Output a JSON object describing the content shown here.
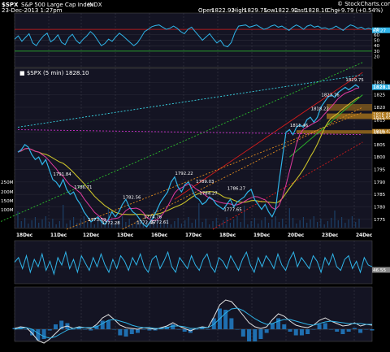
{
  "header": {
    "symbol": "$SPX",
    "name": "S&P 500 Large Cap Index",
    "exchange": "INDX",
    "datetime": "23-Dec-2013 1:27pm",
    "open_label": "Open",
    "open": "1822.92",
    "high_label": "High",
    "high": "1829.75",
    "low_label": "Low",
    "low": "1822.92",
    "last_label": "Last",
    "last": "1828.10",
    "chg_label": "Chg",
    "chg": "+9.79 (+0.54%)",
    "credit": "© StockCharts.com",
    "legend": "■ $SPX (5 min) 1828.10"
  },
  "colors": {
    "price": "#2fb4e8",
    "sma_fast": "#e03aa0",
    "sma_slow": "#c8c02a",
    "trend_red": "#d81b1b",
    "trend_orange": "#e08a1e",
    "trend_green": "#2cbf2c",
    "trend_cyan": "#3ad8e8",
    "trend_magenta": "#c62fc6",
    "zone": "#b0791a",
    "grid": "#3a3a46",
    "last_price_box": "#2fb4e8"
  },
  "chart_data": [
    {
      "type": "line",
      "title": "RSI",
      "ylim": [
        0,
        100
      ],
      "y_ticks": [
        "70",
        "60",
        "50",
        "40",
        "30",
        "20"
      ],
      "last_value": "68.27",
      "series": [
        {
          "values": [
            52,
            58,
            48,
            55,
            62,
            45,
            40,
            50,
            58,
            63,
            47,
            52,
            60,
            46,
            42,
            55,
            61,
            50,
            44,
            52,
            58,
            66,
            60,
            50,
            40,
            44,
            52,
            48,
            56,
            63,
            58,
            52,
            46,
            40,
            45,
            55,
            66,
            70,
            75,
            77,
            78,
            74,
            70,
            72,
            76,
            72,
            66,
            62,
            70,
            74,
            66,
            58,
            50,
            56,
            62,
            53,
            45,
            50,
            40,
            38,
            46,
            64,
            76,
            77,
            78,
            74,
            76,
            78,
            74,
            70,
            72,
            76,
            78,
            74,
            76,
            72,
            68,
            74,
            78,
            75,
            70,
            76,
            78,
            74,
            76,
            72,
            73,
            70,
            72,
            76,
            72,
            68,
            74,
            78,
            76,
            72,
            74,
            70,
            72,
            70
          ]
        }
      ],
      "reference_lines": [
        70,
        30
      ]
    },
    {
      "type": "line",
      "title": "$SPX (5 min)",
      "x_tick_labels": [
        "18Dec",
        "11Dec",
        "12Dec",
        "13Dec",
        "16Dec",
        "17Dec",
        "18Dec",
        "19Dec",
        "20Dec",
        "23Dec",
        "24Dec"
      ],
      "y_ticks": [
        "1830",
        "1825",
        "1820",
        "1815",
        "1810",
        "1805",
        "1800",
        "1795",
        "1790",
        "1785",
        "1780",
        "1775"
      ],
      "volume_ticks": [
        "250M",
        "200M",
        "150M",
        "100M"
      ],
      "last_price": "1828.10",
      "ylim": [
        1772,
        1835
      ],
      "zone_labels": [
        "1816.89",
        "1815.65",
        "1810.42"
      ],
      "price": [
        1802,
        1803,
        1805,
        1804,
        1801,
        1799,
        1800,
        1797,
        1799,
        1795,
        1791,
        1790,
        1788,
        1791,
        1787,
        1785,
        1786,
        1783,
        1781,
        1778,
        1776,
        1774,
        1775,
        1776,
        1774,
        1773,
        1775,
        1778,
        1776,
        1778,
        1781,
        1783,
        1780,
        1778,
        1777,
        1775,
        1773,
        1772,
        1774,
        1776,
        1779,
        1782,
        1784,
        1786,
        1790,
        1792,
        1788,
        1786,
        1789,
        1790,
        1787,
        1784,
        1783,
        1781,
        1782,
        1784,
        1783,
        1781,
        1780,
        1779,
        1781,
        1783,
        1780,
        1782,
        1783,
        1784,
        1786,
        1787,
        1783,
        1781,
        1779,
        1781,
        1778,
        1776,
        1779,
        1790,
        1800,
        1810,
        1811,
        1809,
        1812,
        1813,
        1812,
        1815,
        1816,
        1814,
        1816,
        1820,
        1822,
        1824,
        1825,
        1824,
        1826,
        1827,
        1828,
        1827,
        1828,
        1829,
        1828
      ],
      "annotations": [
        {
          "label": "1791.84",
          "x": 12,
          "y": 1791.84
        },
        {
          "label": "1786.71",
          "x": 18,
          "y": 1786.71
        },
        {
          "label": "1782.56",
          "x": 32,
          "y": 1782.56
        },
        {
          "label": "1773.59",
          "x": 22,
          "y": 1773.59
        },
        {
          "label": "1772.28",
          "x": 26,
          "y": 1772.28
        },
        {
          "label": "1772.45",
          "x": 36,
          "y": 1772.45
        },
        {
          "label": "1772.61",
          "x": 40,
          "y": 1772.61
        },
        {
          "label": "1774.76",
          "x": 38,
          "y": 1774.76
        },
        {
          "label": "1792.22",
          "x": 47,
          "y": 1792.22
        },
        {
          "label": "1789.03",
          "x": 53,
          "y": 1789.03
        },
        {
          "label": "1784.27",
          "x": 54,
          "y": 1784.27
        },
        {
          "label": "1777.65",
          "x": 61,
          "y": 1777.65
        },
        {
          "label": "1786.27",
          "x": 62,
          "y": 1786.27
        },
        {
          "label": "1811.46",
          "x": 80,
          "y": 1811.46
        },
        {
          "label": "1818.22",
          "x": 86,
          "y": 1818.22
        },
        {
          "label": "1823.76",
          "x": 89,
          "y": 1823.76
        },
        {
          "label": "1829.75",
          "x": 96,
          "y": 1829.75
        }
      ]
    },
    {
      "type": "line",
      "title": "Oscillator",
      "last_value": "46.55",
      "series": [
        {
          "values": [
            55,
            60,
            48,
            62,
            44,
            58,
            50,
            64,
            46,
            56,
            42,
            60,
            52,
            66,
            48,
            58,
            44,
            62,
            54,
            46,
            60,
            50,
            64,
            52,
            44,
            58,
            48,
            62,
            56,
            46,
            60,
            52,
            64,
            50,
            44,
            58,
            62,
            48,
            56,
            66,
            50,
            44,
            60,
            54,
            48,
            62,
            52,
            46,
            58,
            64,
            50,
            44,
            60,
            56,
            48,
            62,
            54,
            46,
            58,
            66,
            52,
            44,
            60,
            50,
            62,
            56,
            48,
            64,
            52,
            46,
            58,
            66,
            50,
            60,
            54,
            48,
            62,
            56,
            44,
            60,
            52,
            64,
            50,
            46,
            58,
            62,
            48,
            56,
            44,
            60,
            52,
            50
          ]
        }
      ]
    },
    {
      "type": "area",
      "title": "MACD",
      "series": [
        {
          "name": "macd",
          "values": [
            0.1,
            0.3,
            0.2,
            -0.5,
            -1.4,
            -1.7,
            -1.2,
            -0.5,
            0.2,
            0.4,
            0.1,
            0.3,
            0.2,
            0.1,
            0.6,
            1.4,
            1.8,
            1.2,
            0.5,
            0.2,
            0.1,
            0.0,
            0.2,
            0.1,
            0.0,
            0.2,
            0.4,
            0.8,
            0.4,
            0.1,
            -0.2,
            0.1,
            0.3,
            0.2,
            1.5,
            3.0,
            3.6,
            3.4,
            2.6,
            1.7,
            0.8,
            0.3,
            0.1,
            0.3,
            1.2,
            1.9,
            1.6,
            1.0,
            0.5,
            0.3,
            0.2,
            0.5,
            1.1,
            1.4,
            1.0,
            0.7,
            0.4,
            0.5,
            0.8,
            0.4,
            0.6,
            0.5
          ]
        },
        {
          "name": "signal",
          "values": [
            0.0,
            0.1,
            0.2,
            0.0,
            -0.5,
            -0.9,
            -1.1,
            -0.9,
            -0.5,
            -0.1,
            0.1,
            0.2,
            0.2,
            0.2,
            0.3,
            0.7,
            1.1,
            1.2,
            1.0,
            0.8,
            0.5,
            0.3,
            0.2,
            0.2,
            0.1,
            0.1,
            0.2,
            0.4,
            0.4,
            0.3,
            0.1,
            0.1,
            0.2,
            0.2,
            0.6,
            1.3,
            2.0,
            2.5,
            2.6,
            2.3,
            1.8,
            1.3,
            0.9,
            0.6,
            0.7,
            1.0,
            1.2,
            1.2,
            1.0,
            0.8,
            0.6,
            0.5,
            0.7,
            0.9,
            1.0,
            0.9,
            0.8,
            0.7,
            0.7,
            0.7,
            0.6,
            0.6
          ]
        }
      ]
    }
  ]
}
